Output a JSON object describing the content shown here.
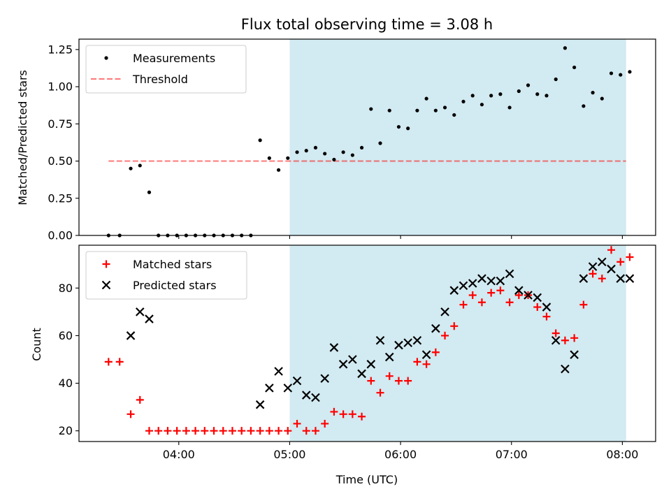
{
  "figure": {
    "title": "Flux total observing time = 3.08 h",
    "xlabel": "Time (UTC)"
  },
  "colors": {
    "shade": "#add8e6",
    "measurements": "#000000",
    "threshold": "#ff0000",
    "matched": "#ff0000",
    "predicted": "#000000"
  },
  "chart_data": [
    {
      "type": "scatter",
      "ylabel": "Matched/Predicted stars",
      "xlim": [
        "03:06",
        "08:18"
      ],
      "ylim": [
        0,
        1.32
      ],
      "yticks": [
        0.0,
        0.25,
        0.5,
        0.75,
        1.0,
        1.25
      ],
      "ytick_labels": [
        "0.00",
        "0.25",
        "0.50",
        "0.75",
        "1.00",
        "1.25"
      ],
      "xticks": [
        "04:00",
        "05:00",
        "06:00",
        "07:00",
        "08:00"
      ],
      "shaded_span": [
        "05:00",
        "08:02"
      ],
      "legend": [
        "Measurements",
        "Threshold"
      ],
      "legend_position": "top-left",
      "threshold": {
        "name": "Threshold",
        "value": 0.5,
        "x_start": "03:22",
        "x_end": "08:02"
      },
      "series": [
        {
          "name": "Measurements",
          "marker": "dot",
          "x": [
            "03:22",
            "03:28",
            "03:34",
            "03:39",
            "03:44",
            "03:49",
            "03:54",
            "03:59",
            "04:04",
            "04:09",
            "04:14",
            "04:19",
            "04:24",
            "04:29",
            "04:34",
            "04:39",
            "04:44",
            "04:49",
            "04:54",
            "04:59",
            "05:04",
            "05:09",
            "05:14",
            "05:19",
            "05:24",
            "05:29",
            "05:34",
            "05:39",
            "05:44",
            "05:49",
            "05:54",
            "05:59",
            "06:04",
            "06:09",
            "06:14",
            "06:19",
            "06:24",
            "06:29",
            "06:34",
            "06:39",
            "06:44",
            "06:49",
            "06:54",
            "06:59",
            "07:04",
            "07:09",
            "07:14",
            "07:19",
            "07:24",
            "07:29",
            "07:34",
            "07:39",
            "07:44",
            "07:49",
            "07:54",
            "07:59",
            "08:04"
          ],
          "y": [
            0.0,
            0.0,
            0.45,
            0.47,
            0.29,
            0.0,
            0.0,
            0.0,
            0.0,
            0.0,
            0.0,
            0.0,
            0.0,
            0.0,
            0.0,
            0.0,
            0.64,
            0.52,
            0.44,
            0.52,
            0.56,
            0.57,
            0.59,
            0.55,
            0.51,
            0.56,
            0.54,
            0.59,
            0.85,
            0.62,
            0.84,
            0.73,
            0.72,
            0.84,
            0.92,
            0.84,
            0.86,
            0.81,
            0.9,
            0.94,
            0.88,
            0.94,
            0.95,
            0.86,
            0.97,
            1.01,
            0.95,
            0.94,
            1.05,
            1.26,
            1.13,
            0.87,
            0.96,
            0.92,
            1.09,
            1.08,
            1.1
          ]
        }
      ]
    },
    {
      "type": "scatter",
      "ylabel": "Count",
      "xlim": [
        "03:06",
        "08:18"
      ],
      "ylim": [
        15.5,
        98
      ],
      "yticks": [
        20,
        40,
        60,
        80
      ],
      "ytick_labels": [
        "20",
        "40",
        "60",
        "80"
      ],
      "xticks": [
        "04:00",
        "05:00",
        "06:00",
        "07:00",
        "08:00"
      ],
      "xtick_labels": [
        "04:00",
        "05:00",
        "06:00",
        "07:00",
        "08:00"
      ],
      "shaded_span": [
        "05:00",
        "08:02"
      ],
      "legend": [
        "Matched stars",
        "Predicted stars"
      ],
      "legend_position": "top-left",
      "series": [
        {
          "name": "Matched stars",
          "marker": "plus",
          "x": [
            "03:22",
            "03:28",
            "03:34",
            "03:39",
            "03:44",
            "03:49",
            "03:54",
            "03:59",
            "04:04",
            "04:09",
            "04:14",
            "04:19",
            "04:24",
            "04:29",
            "04:34",
            "04:39",
            "04:44",
            "04:49",
            "04:54",
            "04:59",
            "05:04",
            "05:09",
            "05:14",
            "05:19",
            "05:24",
            "05:29",
            "05:34",
            "05:39",
            "05:44",
            "05:49",
            "05:54",
            "05:59",
            "06:04",
            "06:09",
            "06:14",
            "06:19",
            "06:24",
            "06:29",
            "06:34",
            "06:39",
            "06:44",
            "06:49",
            "06:54",
            "06:59",
            "07:04",
            "07:09",
            "07:14",
            "07:19",
            "07:24",
            "07:29",
            "07:34",
            "07:39",
            "07:44",
            "07:49",
            "07:54",
            "07:59",
            "08:04"
          ],
          "y": [
            49,
            49,
            27,
            33,
            20,
            20,
            20,
            20,
            20,
            20,
            20,
            20,
            20,
            20,
            20,
            20,
            20,
            20,
            20,
            20,
            23,
            20,
            20,
            23,
            28,
            27,
            27,
            26,
            41,
            36,
            43,
            41,
            41,
            49,
            48,
            53,
            60,
            64,
            73,
            77,
            74,
            78,
            79,
            74,
            77,
            77,
            72,
            68,
            61,
            58,
            59,
            73,
            86,
            84,
            96,
            91,
            93
          ]
        },
        {
          "name": "Predicted stars",
          "marker": "x",
          "x": [
            "03:34",
            "03:39",
            "03:44",
            "04:44",
            "04:49",
            "04:54",
            "04:59",
            "05:04",
            "05:09",
            "05:14",
            "05:19",
            "05:24",
            "05:29",
            "05:34",
            "05:39",
            "05:44",
            "05:49",
            "05:54",
            "05:59",
            "06:04",
            "06:09",
            "06:14",
            "06:19",
            "06:24",
            "06:29",
            "06:34",
            "06:39",
            "06:44",
            "06:49",
            "06:54",
            "06:59",
            "07:04",
            "07:09",
            "07:14",
            "07:19",
            "07:24",
            "07:29",
            "07:34",
            "07:39",
            "07:44",
            "07:49",
            "07:54",
            "07:59",
            "08:04"
          ],
          "y": [
            60,
            70,
            67,
            31,
            38,
            45,
            38,
            41,
            35,
            34,
            42,
            55,
            48,
            50,
            44,
            48,
            58,
            51,
            56,
            57,
            58,
            52,
            63,
            70,
            79,
            81,
            82,
            84,
            83,
            83,
            86,
            79,
            77,
            76,
            72,
            58,
            46,
            52,
            84,
            89,
            91,
            88,
            84,
            84
          ]
        }
      ]
    }
  ]
}
